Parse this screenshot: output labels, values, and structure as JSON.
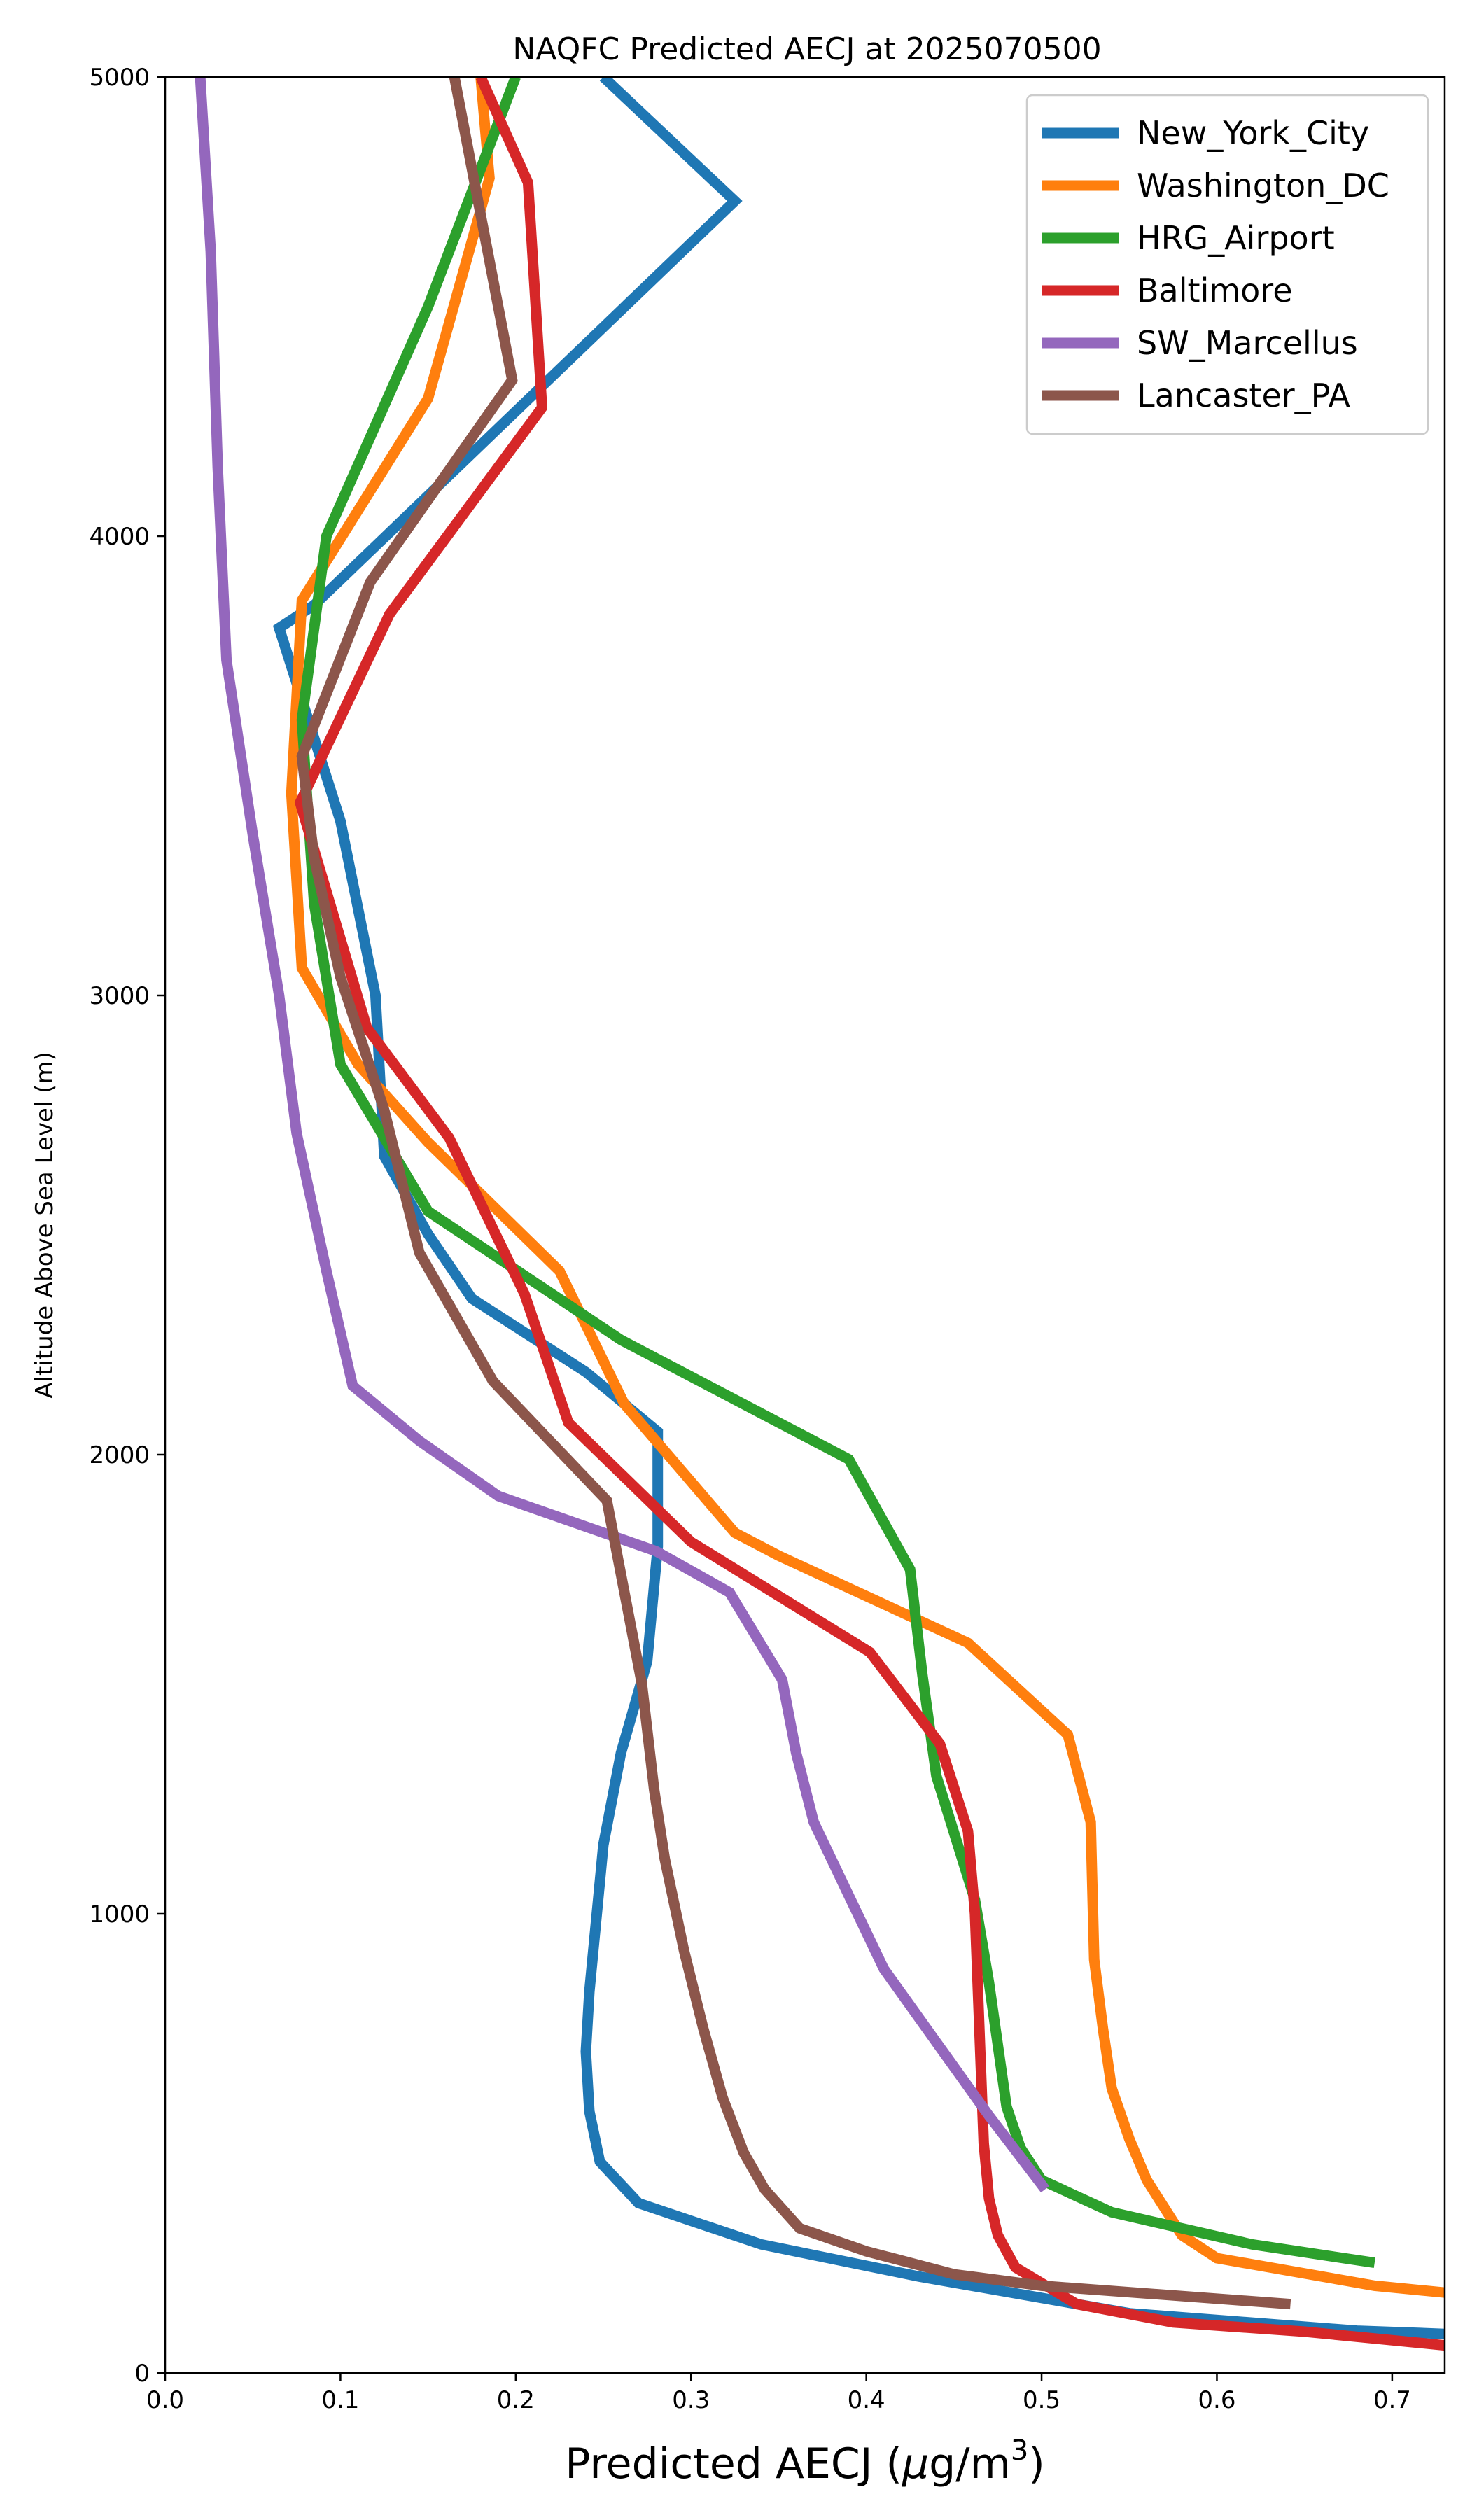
{
  "chart_data": {
    "type": "line",
    "title": "NAQFC Predicted AECJ at 2025070500",
    "xlabel_main": "Predicted AECJ (",
    "xlabel_mu": "μ",
    "xlabel_unit": "g/m",
    "xlabel_sup": "3",
    "xlabel_close": ")",
    "ylabel": "Altitude Above Sea Level (m)",
    "xlim": [
      0.0,
      0.73
    ],
    "ylim": [
      0,
      5000
    ],
    "xticks": [
      "0.0",
      "0.1",
      "0.2",
      "0.3",
      "0.4",
      "0.5",
      "0.6",
      "0.7"
    ],
    "yticks": [
      "0",
      "1000",
      "2000",
      "3000",
      "4000",
      "5000"
    ],
    "grid": false,
    "legend_position": "top-right",
    "series": [
      {
        "name": "New_York_City",
        "color": "#1f77b4",
        "points": [
          [
            0.73,
            85
          ],
          [
            0.68,
            92
          ],
          [
            0.55,
            130
          ],
          [
            0.43,
            210
          ],
          [
            0.34,
            280
          ],
          [
            0.27,
            370
          ],
          [
            0.248,
            460
          ],
          [
            0.242,
            570
          ],
          [
            0.24,
            700
          ],
          [
            0.242,
            830
          ],
          [
            0.25,
            1150
          ],
          [
            0.26,
            1350
          ],
          [
            0.275,
            1550
          ],
          [
            0.281,
            1800
          ],
          [
            0.281,
            2050
          ],
          [
            0.24,
            2180
          ],
          [
            0.175,
            2340
          ],
          [
            0.15,
            2480
          ],
          [
            0.125,
            2650
          ],
          [
            0.12,
            3000
          ],
          [
            0.1,
            3380
          ],
          [
            0.065,
            3800
          ],
          [
            0.085,
            3850
          ],
          [
            0.325,
            4730
          ],
          [
            0.25,
            5000
          ]
        ]
      },
      {
        "name": "Washington_DC",
        "color": "#ff7f0e",
        "points": [
          [
            0.73,
            175
          ],
          [
            0.69,
            190
          ],
          [
            0.6,
            250
          ],
          [
            0.58,
            300
          ],
          [
            0.56,
            420
          ],
          [
            0.55,
            510
          ],
          [
            0.54,
            620
          ],
          [
            0.535,
            750
          ],
          [
            0.53,
            900
          ],
          [
            0.528,
            1200
          ],
          [
            0.515,
            1390
          ],
          [
            0.458,
            1590
          ],
          [
            0.35,
            1780
          ],
          [
            0.325,
            1830
          ],
          [
            0.262,
            2110
          ],
          [
            0.225,
            2400
          ],
          [
            0.15,
            2680
          ],
          [
            0.11,
            2850
          ],
          [
            0.078,
            3060
          ],
          [
            0.072,
            3440
          ],
          [
            0.078,
            3860
          ],
          [
            0.15,
            4300
          ],
          [
            0.185,
            4780
          ],
          [
            0.18,
            5000
          ]
        ]
      },
      {
        "name": "HRG_Airport",
        "color": "#2ca02c",
        "points": [
          [
            0.69,
            240
          ],
          [
            0.62,
            280
          ],
          [
            0.54,
            350
          ],
          [
            0.5,
            420
          ],
          [
            0.488,
            490
          ],
          [
            0.48,
            580
          ],
          [
            0.47,
            850
          ],
          [
            0.462,
            1030
          ],
          [
            0.44,
            1300
          ],
          [
            0.432,
            1520
          ],
          [
            0.425,
            1750
          ],
          [
            0.39,
            1990
          ],
          [
            0.26,
            2250
          ],
          [
            0.15,
            2530
          ],
          [
            0.1,
            2850
          ],
          [
            0.085,
            3200
          ],
          [
            0.078,
            3600
          ],
          [
            0.092,
            4000
          ],
          [
            0.15,
            4500
          ],
          [
            0.2,
            5000
          ]
        ]
      },
      {
        "name": "Baltimore",
        "color": "#d62728",
        "points": [
          [
            0.73,
            60
          ],
          [
            0.65,
            90
          ],
          [
            0.575,
            110
          ],
          [
            0.52,
            150
          ],
          [
            0.485,
            230
          ],
          [
            0.475,
            300
          ],
          [
            0.47,
            380
          ],
          [
            0.467,
            500
          ],
          [
            0.465,
            700
          ],
          [
            0.462,
            1000
          ],
          [
            0.458,
            1180
          ],
          [
            0.442,
            1370
          ],
          [
            0.402,
            1570
          ],
          [
            0.3,
            1810
          ],
          [
            0.23,
            2070
          ],
          [
            0.205,
            2350
          ],
          [
            0.162,
            2690
          ],
          [
            0.115,
            2930
          ],
          [
            0.077,
            3420
          ],
          [
            0.128,
            3830
          ],
          [
            0.215,
            4280
          ],
          [
            0.207,
            4770
          ],
          [
            0.18,
            5000
          ]
        ]
      },
      {
        "name": "SW_Marcellus",
        "color": "#9467bd",
        "points": [
          [
            0.502,
            400
          ],
          [
            0.47,
            560
          ],
          [
            0.44,
            720
          ],
          [
            0.41,
            880
          ],
          [
            0.39,
            1040
          ],
          [
            0.37,
            1200
          ],
          [
            0.36,
            1350
          ],
          [
            0.352,
            1510
          ],
          [
            0.322,
            1700
          ],
          [
            0.28,
            1790
          ],
          [
            0.19,
            1910
          ],
          [
            0.145,
            2030
          ],
          [
            0.107,
            2150
          ],
          [
            0.092,
            2400
          ],
          [
            0.075,
            2700
          ],
          [
            0.065,
            3000
          ],
          [
            0.05,
            3350
          ],
          [
            0.035,
            3730
          ],
          [
            0.03,
            4150
          ],
          [
            0.026,
            4620
          ],
          [
            0.02,
            5000
          ]
        ]
      },
      {
        "name": "Lancaster_PA",
        "color": "#8c564b",
        "points": [
          [
            0.642,
            150
          ],
          [
            0.5,
            190
          ],
          [
            0.45,
            215
          ],
          [
            0.4,
            265
          ],
          [
            0.362,
            315
          ],
          [
            0.342,
            400
          ],
          [
            0.33,
            480
          ],
          [
            0.318,
            600
          ],
          [
            0.307,
            750
          ],
          [
            0.296,
            920
          ],
          [
            0.285,
            1120
          ],
          [
            0.279,
            1270
          ],
          [
            0.272,
            1500
          ],
          [
            0.264,
            1660
          ],
          [
            0.252,
            1900
          ],
          [
            0.187,
            2160
          ],
          [
            0.145,
            2440
          ],
          [
            0.125,
            2750
          ],
          [
            0.1,
            3040
          ],
          [
            0.085,
            3300
          ],
          [
            0.078,
            3520
          ],
          [
            0.117,
            3900
          ],
          [
            0.198,
            4340
          ],
          [
            0.165,
            5000
          ]
        ]
      }
    ]
  }
}
